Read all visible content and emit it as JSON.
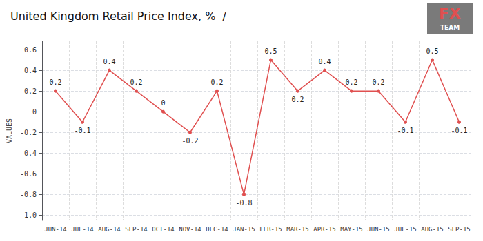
{
  "chart_data": {
    "type": "line",
    "title": "United Kingdom Retail Price Index, %  /",
    "ylabel": "VALUES",
    "categories": [
      "JUN-14",
      "JUL-14",
      "AUG-14",
      "SEP-14",
      "OCT-14",
      "NOV-14",
      "DEC-14",
      "JAN-15",
      "FEB-15",
      "MAR-15",
      "APR-15",
      "MAY-15",
      "JUN-15",
      "JUL-15",
      "AUG-15",
      "SEP-15"
    ],
    "values": [
      0.2,
      -0.1,
      0.4,
      0.2,
      0.0,
      -0.2,
      0.2,
      -0.8,
      0.5,
      0.2,
      0.4,
      0.2,
      0.2,
      -0.1,
      0.5,
      -0.1
    ],
    "color": "#e05050",
    "marker": "circle",
    "ylim": [
      -1.05,
      0.68
    ],
    "yticks": [
      {
        "value": -1.0,
        "label": "-1.0"
      },
      -0.8,
      -0.6,
      -0.4,
      -0.2,
      0,
      0.2,
      0.4,
      0.6
    ],
    "grid": true,
    "data_labels": true,
    "annotations": [
      {
        "text": "FX",
        "color": "#e05050"
      },
      {
        "text": "TEAM",
        "color": "#ffffff"
      }
    ]
  }
}
